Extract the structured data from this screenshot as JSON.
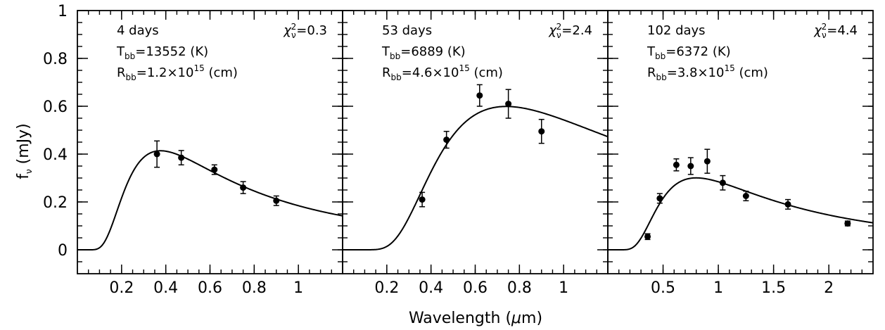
{
  "chart_data": {
    "type": "scatter",
    "ylabel_main": "f",
    "ylabel_sub": "ν",
    "ylabel_unit": " (mJy)",
    "xlabel_main": "Wavelength (",
    "xlabel_mu": "μ",
    "xlabel_rest": "m)",
    "ylim": [
      -0.1,
      1.0
    ],
    "yticks": [
      "0",
      "0.2",
      "0.4",
      "0.6",
      "0.8",
      "1"
    ],
    "yticks_values": [
      0,
      0.2,
      0.4,
      0.6,
      0.8,
      1.0
    ],
    "panels": [
      {
        "epoch": "4 days",
        "T_label": "T",
        "T_sub": "bb",
        "T_value": "=13552 (K)",
        "R_label": "R",
        "R_sub": "bb",
        "R_value": "=1.2×10",
        "R_exp": "15",
        "R_unit": " (cm)",
        "chi_label": "χ",
        "chi_sub": "ν",
        "chi_sup": "2",
        "chi_value": "=0.3",
        "T_kelvin": 13552,
        "R_cm": 1200000000000000.0,
        "xlim": [
          0.0,
          1.2
        ],
        "xticks": [
          "0.2",
          "0.4",
          "0.6",
          "0.8",
          "1"
        ],
        "xticks_values": [
          0.2,
          0.4,
          0.6,
          0.8,
          1.0
        ],
        "points": [
          {
            "x": 0.36,
            "y": 0.4,
            "err": 0.055
          },
          {
            "x": 0.47,
            "y": 0.385,
            "err": 0.03
          },
          {
            "x": 0.62,
            "y": 0.335,
            "err": 0.02
          },
          {
            "x": 0.75,
            "y": 0.26,
            "err": 0.025
          },
          {
            "x": 0.9,
            "y": 0.205,
            "err": 0.02
          }
        ]
      },
      {
        "epoch": "53 days",
        "T_label": "T",
        "T_sub": "bb",
        "T_value": "=6889 (K)",
        "R_label": "R",
        "R_sub": "bb",
        "R_value": "=4.6×10",
        "R_exp": "15",
        "R_unit": " (cm)",
        "chi_label": "χ",
        "chi_sub": "ν",
        "chi_sup": "2",
        "chi_value": "=2.4",
        "T_kelvin": 6889,
        "R_cm": 4600000000000000.0,
        "xlim": [
          0.0,
          1.2
        ],
        "xticks": [
          "0.2",
          "0.4",
          "0.6",
          "0.8",
          "1"
        ],
        "xticks_values": [
          0.2,
          0.4,
          0.6,
          0.8,
          1.0
        ],
        "points": [
          {
            "x": 0.36,
            "y": 0.21,
            "err": 0.03
          },
          {
            "x": 0.47,
            "y": 0.46,
            "err": 0.035
          },
          {
            "x": 0.62,
            "y": 0.645,
            "err": 0.045
          },
          {
            "x": 0.75,
            "y": 0.61,
            "err": 0.06
          },
          {
            "x": 0.9,
            "y": 0.495,
            "err": 0.05
          }
        ]
      },
      {
        "epoch": "102 days",
        "T_label": "T",
        "T_sub": "bb",
        "T_value": "=6372 (K)",
        "R_label": "R",
        "R_sub": "bb",
        "R_value": "=3.8×10",
        "R_exp": "15",
        "R_unit": " (cm)",
        "chi_label": "χ",
        "chi_sub": "ν",
        "chi_sup": "2",
        "chi_value": "=4.4",
        "T_kelvin": 6372,
        "R_cm": 3800000000000000.0,
        "xlim": [
          0.0,
          2.4
        ],
        "xticks": [
          "0.5",
          "1",
          "1.5",
          "2"
        ],
        "xticks_values": [
          0.5,
          1.0,
          1.5,
          2.0
        ],
        "points": [
          {
            "x": 0.36,
            "y": 0.055,
            "err": 0.012
          },
          {
            "x": 0.47,
            "y": 0.215,
            "err": 0.02
          },
          {
            "x": 0.62,
            "y": 0.355,
            "err": 0.025
          },
          {
            "x": 0.75,
            "y": 0.35,
            "err": 0.035
          },
          {
            "x": 0.9,
            "y": 0.37,
            "err": 0.05
          },
          {
            "x": 1.04,
            "y": 0.28,
            "err": 0.03
          },
          {
            "x": 1.25,
            "y": 0.225,
            "err": 0.02
          },
          {
            "x": 1.63,
            "y": 0.19,
            "err": 0.02
          },
          {
            "x": 2.17,
            "y": 0.11,
            "err": 0.01
          }
        ]
      }
    ]
  }
}
